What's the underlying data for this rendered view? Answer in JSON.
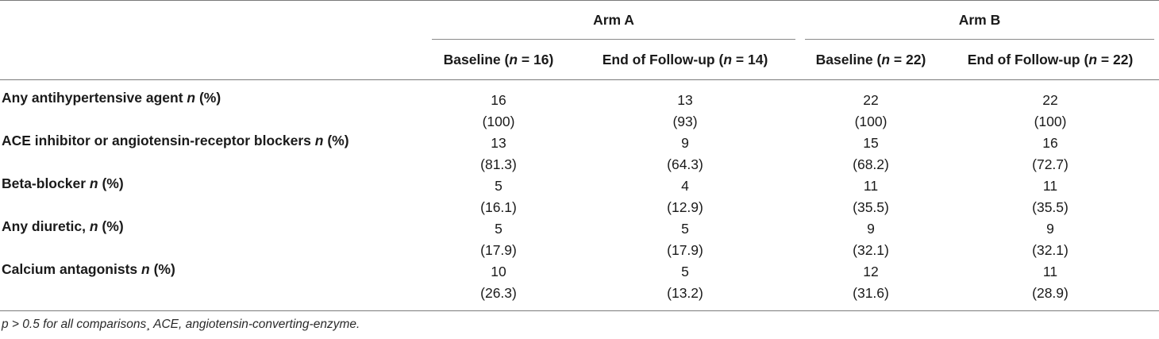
{
  "table": {
    "arm_headers": [
      "Arm A",
      "Arm B"
    ],
    "sub_headers": [
      {
        "prefix": "Baseline (",
        "n": "n",
        "suffix": " = 16)"
      },
      {
        "prefix": "End of Follow-up (",
        "n": "n",
        "suffix": " = 14)"
      },
      {
        "prefix": "Baseline (",
        "n": "n",
        "suffix": " = 22)"
      },
      {
        "prefix": "End of Follow-up (",
        "n": "n",
        "suffix": " = 22)"
      }
    ],
    "rows": [
      {
        "label_pre": "Any antihypertensive agent ",
        "label_n": "n",
        "label_post": " (%)",
        "cells": [
          {
            "count": "16",
            "pct": "(100)"
          },
          {
            "count": "13",
            "pct": "(93)"
          },
          {
            "count": "22",
            "pct": "(100)"
          },
          {
            "count": "22",
            "pct": "(100)"
          }
        ]
      },
      {
        "label_pre": "ACE inhibitor or angiotensin-receptor blockers ",
        "label_n": "n",
        "label_post": " (%)",
        "cells": [
          {
            "count": "13",
            "pct": "(81.3)"
          },
          {
            "count": "9",
            "pct": "(64.3)"
          },
          {
            "count": "15",
            "pct": "(68.2)"
          },
          {
            "count": "16",
            "pct": "(72.7)"
          }
        ]
      },
      {
        "label_pre": "Beta-blocker ",
        "label_n": "n",
        "label_post": " (%)",
        "cells": [
          {
            "count": "5",
            "pct": "(16.1)"
          },
          {
            "count": "4",
            "pct": "(12.9)"
          },
          {
            "count": "11",
            "pct": "(35.5)"
          },
          {
            "count": "11",
            "pct": "(35.5)"
          }
        ]
      },
      {
        "label_pre": "Any diuretic, ",
        "label_n": "n",
        "label_post": " (%)",
        "cells": [
          {
            "count": "5",
            "pct": "(17.9)"
          },
          {
            "count": "5",
            "pct": "(17.9)"
          },
          {
            "count": "9",
            "pct": "(32.1)"
          },
          {
            "count": "9",
            "pct": "(32.1)"
          }
        ]
      },
      {
        "label_pre": "Calcium antagonists ",
        "label_n": "n",
        "label_post": " (%)",
        "cells": [
          {
            "count": "10",
            "pct": "(26.3)"
          },
          {
            "count": "5",
            "pct": "(13.2)"
          },
          {
            "count": "12",
            "pct": "(31.6)"
          },
          {
            "count": "11",
            "pct": "(28.9)"
          }
        ]
      }
    ]
  },
  "footnote": "p > 0.5 for all comparisons¸ ACE, angiotensin-converting-enzyme."
}
